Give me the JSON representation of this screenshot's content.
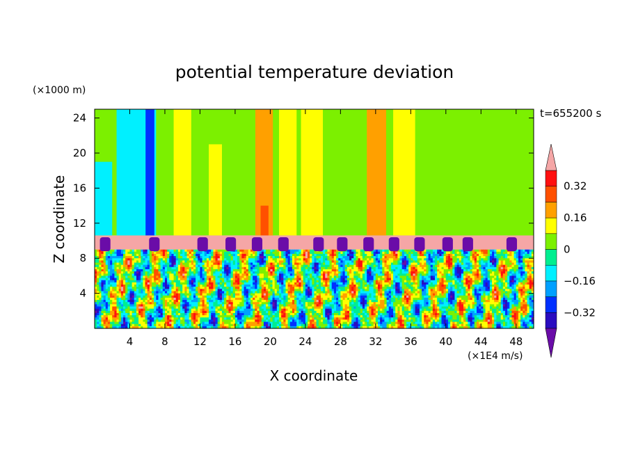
{
  "chart_data": {
    "type": "heatmap",
    "title": "potential temperature deviation",
    "xlabel": "X coordinate",
    "ylabel": "Z coordinate",
    "x_unit": "(×1E4 m/s)",
    "y_unit": "(×1000 m)",
    "time_label": "t=655200 s",
    "xlim": [
      0,
      50
    ],
    "ylim": [
      0,
      25
    ],
    "x_ticks": [
      4,
      8,
      12,
      16,
      20,
      24,
      28,
      32,
      36,
      40,
      44,
      48
    ],
    "y_ticks": [
      4,
      8,
      12,
      16,
      20,
      24
    ],
    "colorbar": {
      "levels": [
        -0.4,
        -0.32,
        -0.24,
        -0.16,
        -0.08,
        0,
        0.08,
        0.16,
        0.24,
        0.32,
        0.4
      ],
      "labels": [
        "0.32",
        "0.16",
        "0",
        "−0.16",
        "−0.32"
      ],
      "label_values": [
        0.32,
        0.16,
        0,
        -0.16,
        -0.32
      ],
      "colors": [
        "#6a0ca8",
        "#2a0cc0",
        "#0030ff",
        "#00a0ff",
        "#00f0ff",
        "#00ee90",
        "#7cf000",
        "#ffff00",
        "#ffa000",
        "#ff5000",
        "#ff1010",
        "#f5a6a6"
      ]
    },
    "upper_layer_zmin": 10.6,
    "layer_band": [
      9.0,
      10.6
    ],
    "purple_bump_x": [
      1.2,
      6.8,
      12.3,
      15.5,
      18.5,
      21.5,
      25.5,
      28.2,
      31.2,
      34.1,
      37.0,
      40.2,
      42.5,
      47.5
    ],
    "vertical_streaks": [
      {
        "x0": 2.5,
        "x1": 7.0,
        "level": -0.16,
        "ztop": 25
      },
      {
        "x0": 5.8,
        "x1": 6.8,
        "level": -0.32,
        "ztop": 25
      },
      {
        "x0": 0,
        "x1": 2.0,
        "level": -0.16,
        "ztop": 19
      },
      {
        "x0": 18.3,
        "x1": 20.3,
        "level": 0.16,
        "ztop": 25
      },
      {
        "x0": 18.9,
        "x1": 19.8,
        "level": 0.24,
        "ztop": 14
      },
      {
        "x0": 31.0,
        "x1": 33.2,
        "level": 0.16,
        "ztop": 25
      },
      {
        "x0": 9.0,
        "x1": 11.0,
        "level": 0.08,
        "ztop": 25
      },
      {
        "x0": 13.0,
        "x1": 14.5,
        "level": 0.08,
        "ztop": 21
      },
      {
        "x0": 21.0,
        "x1": 23.0,
        "level": 0.08,
        "ztop": 25
      },
      {
        "x0": 23.5,
        "x1": 26.0,
        "level": 0.08,
        "ztop": 25
      },
      {
        "x0": 26.0,
        "x1": 28.5,
        "level": 0,
        "ztop": 25
      },
      {
        "x0": 34.0,
        "x1": 36.5,
        "level": 0.08,
        "ztop": 25
      },
      {
        "x0": 40.0,
        "x1": 44.0,
        "level": 0,
        "ztop": 25
      },
      {
        "x0": 47.0,
        "x1": 50.0,
        "level": 0,
        "ztop": 20
      }
    ],
    "lower_layer": {
      "zmin": 0,
      "zmax": 9.0,
      "nx": 200,
      "nz": 36,
      "seed": 7
    }
  }
}
